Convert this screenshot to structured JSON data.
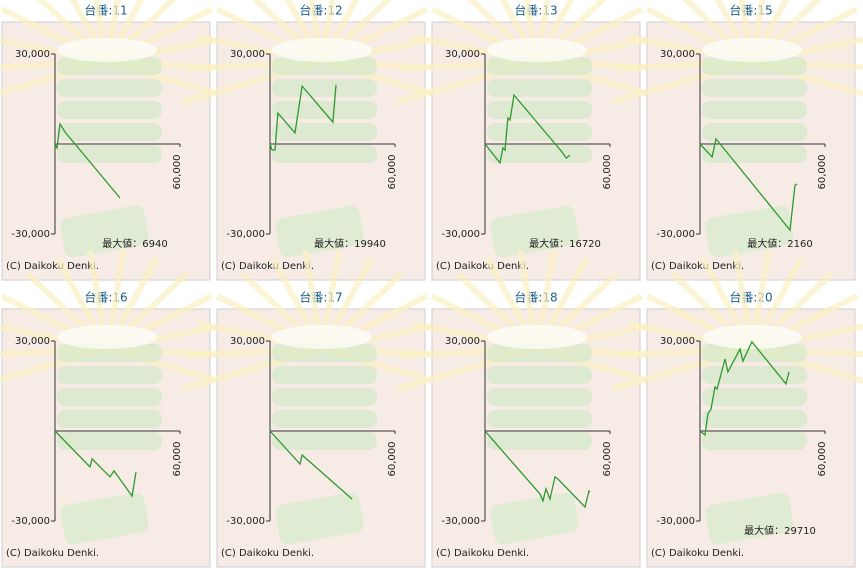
{
  "chart_data": [
    {
      "type": "line",
      "title": "台番:11",
      "x": [
        0,
        960,
        2400,
        4800,
        31200
      ],
      "values": [
        0,
        -1300,
        6700,
        4000,
        -18000
      ],
      "color": "#2e9a2e",
      "xlim": [
        0,
        60000
      ],
      "ylim": [
        -30000,
        30000
      ],
      "yticks": [
        {
          "value": -30000,
          "label": "-30,000"
        },
        {
          "value": 30000,
          "label": "30,000"
        }
      ],
      "xticks": [
        {
          "value": 60000,
          "label": "60,000"
        }
      ],
      "annotation": "最大値：6940",
      "footer": "(C) Daikoku Denki."
    },
    {
      "type": "line",
      "title": "台番:12",
      "x": [
        0,
        960,
        2400,
        3800,
        12000,
        15400,
        30200,
        31700
      ],
      "values": [
        0,
        -2000,
        -2000,
        10300,
        3700,
        19300,
        7300,
        19700
      ],
      "color": "#2e9a2e",
      "xlim": [
        0,
        60000
      ],
      "ylim": [
        -30000,
        30000
      ],
      "yticks": [
        {
          "value": -30000,
          "label": "-30,000"
        },
        {
          "value": 30000,
          "label": "30,000"
        }
      ],
      "xticks": [
        {
          "value": 60000,
          "label": "60,000"
        }
      ],
      "annotation": "最大値：19940",
      "footer": "(C) Daikoku Denki."
    },
    {
      "type": "line",
      "title": "台番:13",
      "x": [
        0,
        7200,
        8600,
        9600,
        11000,
        12000,
        13900,
        37000,
        39000,
        40800
      ],
      "values": [
        0,
        -6300,
        -1300,
        -2000,
        8700,
        8000,
        16300,
        -2700,
        -4700,
        -3700
      ],
      "color": "#2e9a2e",
      "xlim": [
        0,
        60000
      ],
      "ylim": [
        -30000,
        30000
      ],
      "yticks": [
        {
          "value": -30000,
          "label": "-30,000"
        },
        {
          "value": 30000,
          "label": "30,000"
        }
      ],
      "xticks": [
        {
          "value": 60000,
          "label": "60,000"
        }
      ],
      "annotation": "最大値：16720",
      "footer": "(C) Daikoku Denki."
    },
    {
      "type": "line",
      "title": "台番:15",
      "x": [
        0,
        5800,
        7700,
        43200,
        45600,
        46600
      ],
      "values": [
        0,
        -4300,
        1700,
        -28700,
        -13700,
        -13300
      ],
      "color": "#2e9a2e",
      "xlim": [
        0,
        60000
      ],
      "ylim": [
        -30000,
        30000
      ],
      "yticks": [
        {
          "value": -30000,
          "label": "-30,000"
        },
        {
          "value": 30000,
          "label": "30,000"
        }
      ],
      "xticks": [
        {
          "value": 60000,
          "label": "60,000"
        }
      ],
      "annotation": "最大値：2160",
      "footer": "(C) Daikoku Denki."
    },
    {
      "type": "line",
      "title": "台番:16",
      "x": [
        0,
        16800,
        17800,
        26400,
        28300,
        37000,
        38900
      ],
      "values": [
        0,
        -12000,
        -9300,
        -15300,
        -13300,
        -21700,
        -13700
      ],
      "color": "#2e9a2e",
      "xlim": [
        0,
        60000
      ],
      "ylim": [
        -30000,
        30000
      ],
      "yticks": [
        {
          "value": -30000,
          "label": "-30,000"
        },
        {
          "value": 30000,
          "label": "30,000"
        }
      ],
      "xticks": [
        {
          "value": 60000,
          "label": "60,000"
        }
      ],
      "footer": "(C) Daikoku Denki."
    },
    {
      "type": "line",
      "title": "台番:17",
      "x": [
        0,
        14400,
        15400,
        39400
      ],
      "values": [
        0,
        -11000,
        -8000,
        -22700
      ],
      "color": "#2e9a2e",
      "xlim": [
        0,
        60000
      ],
      "ylim": [
        -30000,
        30000
      ],
      "yticks": [
        {
          "value": -30000,
          "label": "-30,000"
        },
        {
          "value": 30000,
          "label": "30,000"
        }
      ],
      "xticks": [
        {
          "value": 60000,
          "label": "60,000"
        }
      ],
      "footer": "(C) Daikoku Denki."
    },
    {
      "type": "line",
      "title": "台番:18",
      "x": [
        0,
        26400,
        27800,
        29300,
        31200,
        33600,
        35000,
        48000,
        49900,
        50400
      ],
      "values": [
        0,
        -21000,
        -23300,
        -19300,
        -22700,
        -15300,
        -16000,
        -25300,
        -20000,
        -20300
      ],
      "color": "#2e9a2e",
      "xlim": [
        0,
        60000
      ],
      "ylim": [
        -30000,
        30000
      ],
      "yticks": [
        {
          "value": -30000,
          "label": "-30,000"
        },
        {
          "value": 30000,
          "label": "30,000"
        }
      ],
      "xticks": [
        {
          "value": 60000,
          "label": "60,000"
        }
      ],
      "footer": "(C) Daikoku Denki."
    },
    {
      "type": "line",
      "title": "台番:20",
      "x": [
        0,
        2400,
        3800,
        5300,
        7200,
        8200,
        12000,
        13400,
        19200,
        20600,
        24900,
        41300,
        42700
      ],
      "values": [
        0,
        -1300,
        5700,
        7300,
        14700,
        14000,
        24000,
        19700,
        27300,
        23300,
        29700,
        15700,
        19700
      ],
      "color": "#2e9a2e",
      "xlim": [
        0,
        60000
      ],
      "ylim": [
        -30000,
        30000
      ],
      "yticks": [
        {
          "value": -30000,
          "label": "-30,000"
        },
        {
          "value": 30000,
          "label": "30,000"
        }
      ],
      "xticks": [
        {
          "value": 60000,
          "label": "60,000"
        }
      ],
      "annotation": "最大値：29710",
      "footer": "(C) Daikoku Denki."
    }
  ]
}
